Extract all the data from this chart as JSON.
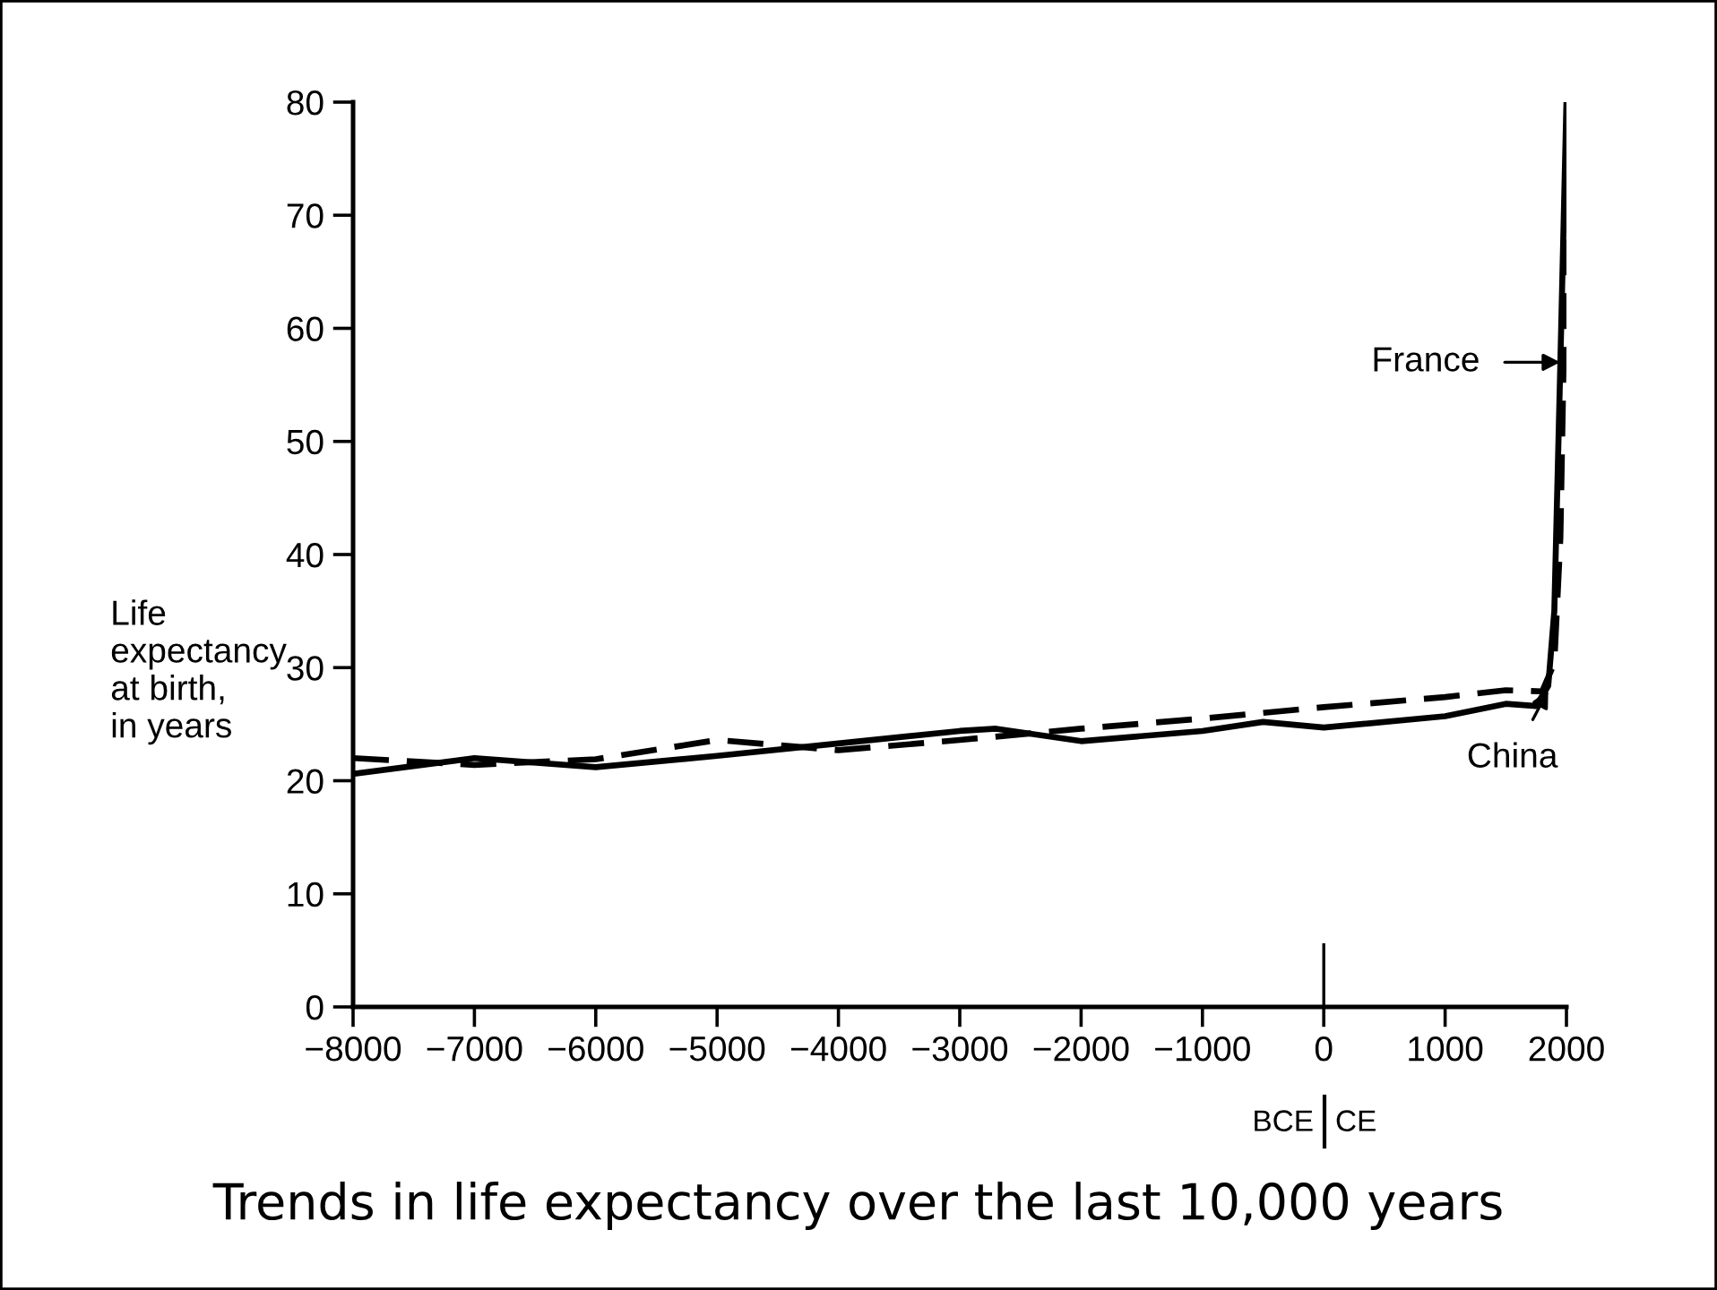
{
  "chart_data": {
    "type": "line",
    "title": "Trends in life expectancy over the last 10,000 years",
    "ylabel": "Life\nexpectancy\nat birth,\nin years",
    "xlim": [
      -8000,
      2000
    ],
    "ylim": [
      0,
      80
    ],
    "xticks": [
      {
        "value": -8000,
        "label": "−8000"
      },
      {
        "value": -7000,
        "label": "−7000"
      },
      {
        "value": -6000,
        "label": "−6000"
      },
      {
        "value": -5000,
        "label": "−5000"
      },
      {
        "value": -4000,
        "label": "−4000"
      },
      {
        "value": -3000,
        "label": "−3000"
      },
      {
        "value": -2000,
        "label": "−2000"
      },
      {
        "value": -1000,
        "label": "−1000"
      },
      0,
      1000,
      2000
    ],
    "yticks": [
      0,
      10,
      20,
      30,
      40,
      50,
      60,
      70,
      80
    ],
    "grid": false,
    "legend": false,
    "series": [
      {
        "color": "#000000",
        "line_style": "solid",
        "x": [
          -8000,
          -7000,
          -6000,
          -5000,
          -4000,
          -3000,
          -2700,
          -2000,
          -1000,
          -500,
          0,
          1000,
          1500,
          1750,
          1850,
          1900,
          1950,
          2000
        ],
        "values": [
          20.6,
          22.0,
          21.2,
          22.2,
          23.3,
          24.4,
          24.6,
          23.5,
          24.4,
          25.2,
          24.7,
          25.7,
          26.8,
          26.6,
          28.4,
          35,
          57,
          80
        ]
      },
      {
        "color": "#000000",
        "line_style": "dashed",
        "x": [
          -8000,
          -7000,
          -6000,
          -5000,
          -4000,
          -3000,
          -2000,
          -1000,
          0,
          1000,
          1500,
          1800,
          1900,
          1950,
          1990,
          2000
        ],
        "values": [
          22,
          21.4,
          21.9,
          23.6,
          22.7,
          23.6,
          24.6,
          25.5,
          26.5,
          27.4,
          28.0,
          27.9,
          30.4,
          41.5,
          65,
          70
        ]
      }
    ],
    "annotations": [
      {
        "text": "France",
        "x": 1950,
        "y": 57
      },
      {
        "text": "China",
        "x": 1850,
        "y": 28
      },
      "BCE",
      "CE"
    ]
  }
}
